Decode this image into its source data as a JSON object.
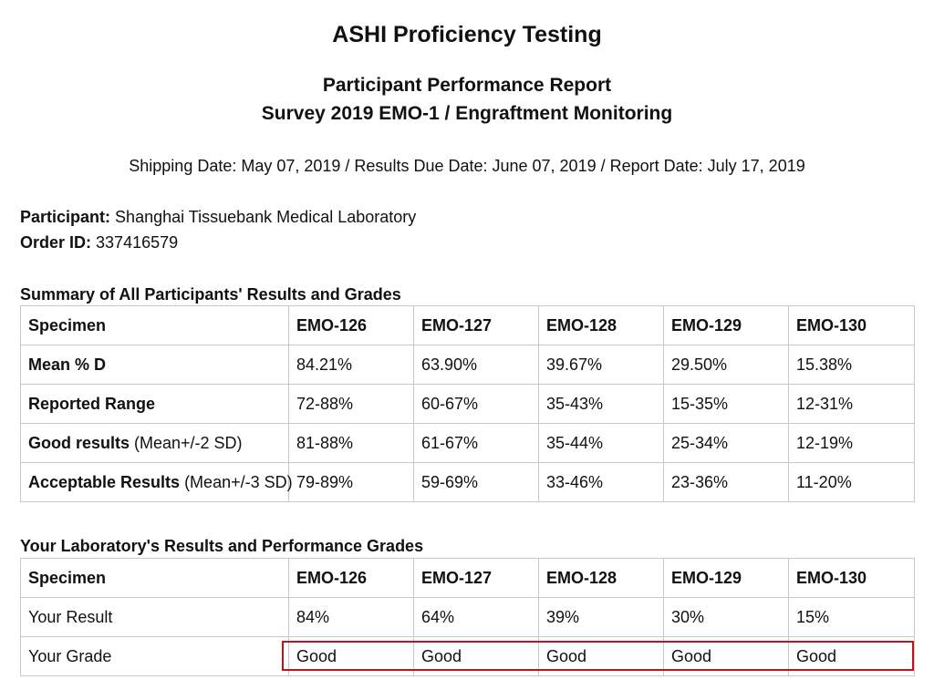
{
  "header": {
    "title": "ASHI Proficiency Testing",
    "subtitle1": "Participant Performance Report",
    "subtitle2": "Survey 2019 EMO-1 / Engraftment Monitoring",
    "dates": "Shipping Date: May 07, 2019 / Results Due Date: June 07, 2019 / Report Date: July 17, 2019"
  },
  "info": {
    "participant_label": "Participant:",
    "participant_value": "Shanghai Tissuebank Medical Laboratory",
    "order_label": "Order ID:",
    "order_value": "337416579"
  },
  "summary": {
    "title": "Summary of All Participants' Results and Grades",
    "header": [
      "Specimen",
      "EMO-126",
      "EMO-127",
      "EMO-128",
      "EMO-129",
      "EMO-130"
    ],
    "rows": [
      {
        "label": "Mean % D",
        "note": "",
        "values": [
          "84.21%",
          "63.90%",
          "39.67%",
          "29.50%",
          "15.38%"
        ]
      },
      {
        "label": "Reported Range",
        "note": "",
        "values": [
          "72-88%",
          "60-67%",
          "35-43%",
          "15-35%",
          "12-31%"
        ]
      },
      {
        "label": "Good results",
        "note": " (Mean+/-2 SD)",
        "values": [
          "81-88%",
          "61-67%",
          "35-44%",
          "25-34%",
          "12-19%"
        ]
      },
      {
        "label": "Acceptable Results",
        "note": " (Mean+/-3 SD)",
        "values": [
          "79-89%",
          "59-69%",
          "33-46%",
          "23-36%",
          "11-20%"
        ]
      }
    ]
  },
  "lab": {
    "title": "Your Laboratory's Results and Performance Grades",
    "header": [
      "Specimen",
      "EMO-126",
      "EMO-127",
      "EMO-128",
      "EMO-129",
      "EMO-130"
    ],
    "rows": [
      {
        "label": "Your Result",
        "values": [
          "84%",
          "64%",
          "39%",
          "30%",
          "15%"
        ]
      },
      {
        "label": "Your Grade",
        "values": [
          "Good",
          "Good",
          "Good",
          "Good",
          "Good"
        ]
      }
    ]
  },
  "colors": {
    "highlight_border": "#c0141b",
    "grid_border": "#c8c8c8"
  }
}
